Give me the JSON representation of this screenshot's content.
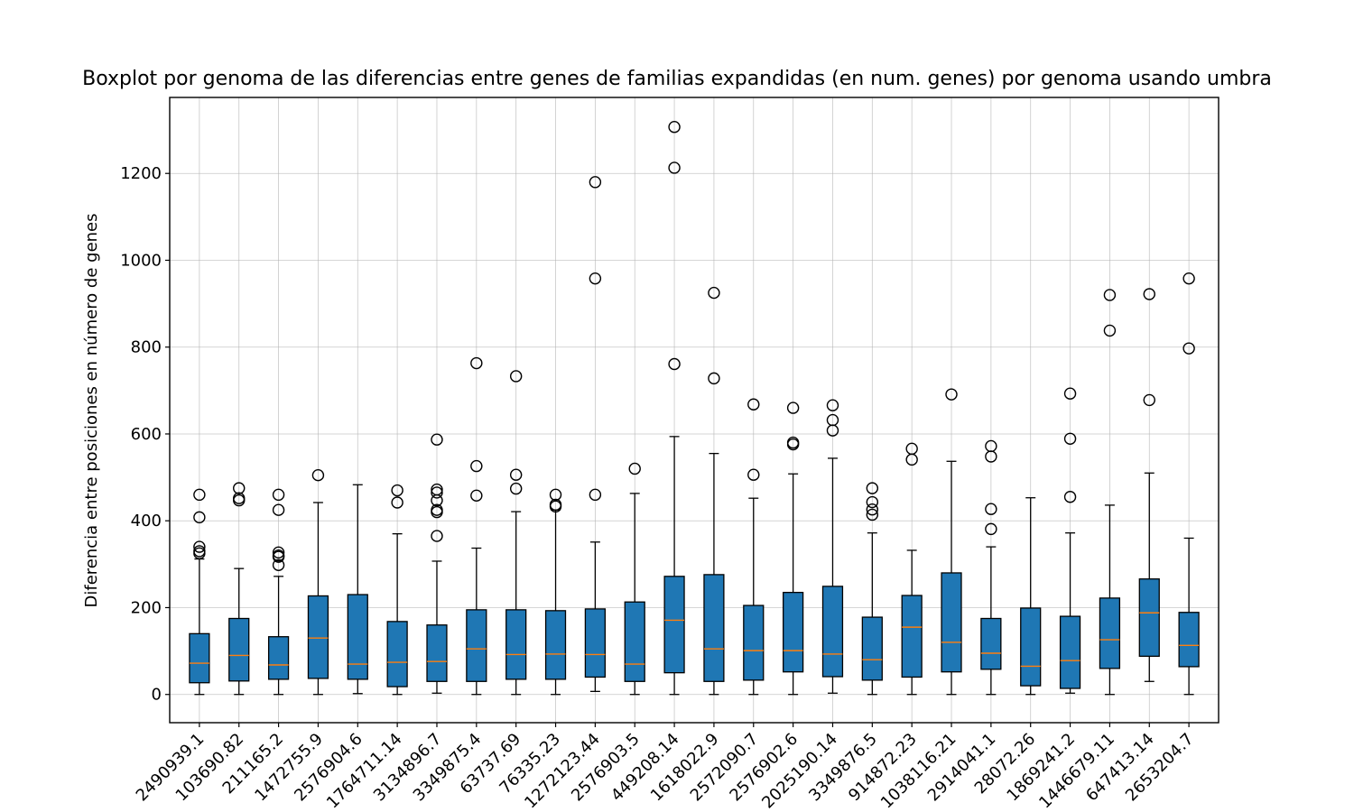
{
  "chart_data": {
    "type": "box",
    "title": "Boxplot por genoma de las diferencias entre genes de familias expandidas (en num. genes) por genoma usando umbra",
    "xlabel": "",
    "ylabel": "Diferencia entre posiciones en número de genes",
    "ylim": [
      -65,
      1375
    ],
    "yticks": [
      0,
      200,
      400,
      600,
      800,
      1000,
      1200
    ],
    "grid": true,
    "box_color": "#1f77b4",
    "median_color": "#ff7f0e",
    "categories": [
      "2490939.1",
      "103690.82",
      "211165.2",
      "1472755.9",
      "2576904.6",
      "1764711.14",
      "3134896.7",
      "3349875.4",
      "63737.69",
      "76335.23",
      "1272123.44",
      "2576903.5",
      "449208.14",
      "1618022.9",
      "2572090.7",
      "2576902.6",
      "2025190.14",
      "3349876.5",
      "914872.23",
      "1038116.21",
      "2914041.1",
      "28072.26",
      "1869241.2",
      "1446679.11",
      "647413.14",
      "2653204.7"
    ],
    "boxes": [
      {
        "q1": 27,
        "median": 72,
        "q3": 140,
        "whislo": 0,
        "whishi": 312,
        "fliers": [
          460,
          408,
          340,
          330,
          325
        ]
      },
      {
        "q1": 31,
        "median": 90,
        "q3": 175,
        "whislo": 0,
        "whishi": 290,
        "fliers": [
          475,
          452,
          447
        ]
      },
      {
        "q1": 35,
        "median": 68,
        "q3": 133,
        "whislo": 0,
        "whishi": 272,
        "fliers": [
          460,
          425,
          327,
          320,
          317,
          298
        ]
      },
      {
        "q1": 37,
        "median": 130,
        "q3": 227,
        "whislo": 0,
        "whishi": 442,
        "fliers": [
          505
        ]
      },
      {
        "q1": 35,
        "median": 70,
        "q3": 230,
        "whislo": 2,
        "whishi": 483,
        "fliers": []
      },
      {
        "q1": 18,
        "median": 74,
        "q3": 168,
        "whislo": 0,
        "whishi": 370,
        "fliers": [
          470,
          442
        ]
      },
      {
        "q1": 30,
        "median": 76,
        "q3": 160,
        "whislo": 3,
        "whishi": 307,
        "fliers": [
          587,
          472,
          465,
          447,
          425,
          420,
          365
        ]
      },
      {
        "q1": 30,
        "median": 105,
        "q3": 195,
        "whislo": 0,
        "whishi": 337,
        "fliers": [
          763,
          526,
          458
        ]
      },
      {
        "q1": 35,
        "median": 92,
        "q3": 195,
        "whislo": 0,
        "whishi": 421,
        "fliers": [
          733,
          506,
          474
        ]
      },
      {
        "q1": 35,
        "median": 93,
        "q3": 193,
        "whislo": 0,
        "whishi": 425,
        "fliers": [
          460,
          437,
          433
        ]
      },
      {
        "q1": 40,
        "median": 92,
        "q3": 197,
        "whislo": 7,
        "whishi": 351,
        "fliers": [
          1180,
          958,
          460
        ]
      },
      {
        "q1": 30,
        "median": 70,
        "q3": 213,
        "whislo": 0,
        "whishi": 463,
        "fliers": [
          520
        ]
      },
      {
        "q1": 50,
        "median": 171,
        "q3": 272,
        "whislo": 0,
        "whishi": 594,
        "fliers": [
          1307,
          1213,
          761
        ]
      },
      {
        "q1": 30,
        "median": 105,
        "q3": 276,
        "whislo": 0,
        "whishi": 555,
        "fliers": [
          925,
          728
        ]
      },
      {
        "q1": 33,
        "median": 101,
        "q3": 205,
        "whislo": 0,
        "whishi": 452,
        "fliers": [
          668,
          506
        ]
      },
      {
        "q1": 52,
        "median": 101,
        "q3": 235,
        "whislo": 0,
        "whishi": 508,
        "fliers": [
          660,
          580,
          576
        ]
      },
      {
        "q1": 41,
        "median": 93,
        "q3": 249,
        "whislo": 3,
        "whishi": 544,
        "fliers": [
          666,
          632,
          608
        ]
      },
      {
        "q1": 33,
        "median": 80,
        "q3": 178,
        "whislo": 0,
        "whishi": 372,
        "fliers": [
          475,
          443,
          426,
          414
        ]
      },
      {
        "q1": 40,
        "median": 155,
        "q3": 228,
        "whislo": 0,
        "whishi": 332,
        "fliers": [
          566,
          541
        ]
      },
      {
        "q1": 52,
        "median": 120,
        "q3": 280,
        "whislo": 0,
        "whishi": 537,
        "fliers": [
          691
        ]
      },
      {
        "q1": 58,
        "median": 95,
        "q3": 175,
        "whislo": 0,
        "whishi": 340,
        "fliers": [
          572,
          548,
          427,
          381
        ]
      },
      {
        "q1": 20,
        "median": 65,
        "q3": 199,
        "whislo": 0,
        "whishi": 453,
        "fliers": []
      },
      {
        "q1": 14,
        "median": 78,
        "q3": 180,
        "whislo": 3,
        "whishi": 372,
        "fliers": [
          693,
          589,
          455
        ]
      },
      {
        "q1": 60,
        "median": 126,
        "q3": 222,
        "whislo": 0,
        "whishi": 436,
        "fliers": [
          920,
          838
        ]
      },
      {
        "q1": 88,
        "median": 188,
        "q3": 266,
        "whislo": 30,
        "whishi": 510,
        "fliers": [
          922,
          678
        ]
      },
      {
        "q1": 64,
        "median": 113,
        "q3": 189,
        "whislo": 0,
        "whishi": 360,
        "fliers": [
          958,
          797
        ]
      }
    ]
  }
}
